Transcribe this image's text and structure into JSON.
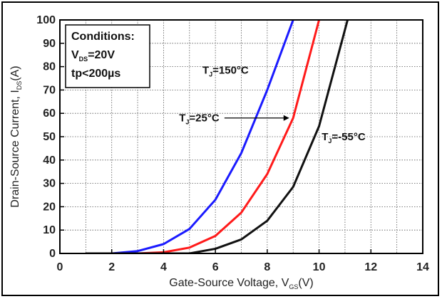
{
  "chart_data": {
    "type": "line",
    "xlabel": "Gate-Source Voltage, V",
    "xlabel_sub": "GS",
    "xlabel_unit": "(V)",
    "ylabel": "Drain-Source Current, I",
    "ylabel_sub": "DS",
    "ylabel_unit": "(A)",
    "xlim": [
      0,
      14
    ],
    "ylim": [
      0,
      100
    ],
    "xticks": [
      0,
      2,
      4,
      6,
      8,
      10,
      12,
      14
    ],
    "yticks": [
      0,
      10,
      20,
      30,
      40,
      50,
      60,
      70,
      80,
      90,
      100
    ],
    "grid": "dotted",
    "conditions": {
      "title": "Conditions:",
      "line1_main": "V",
      "line1_sub": "DS",
      "line1_rest": "=20V",
      "line2": "tp<200µs"
    },
    "series": [
      {
        "name_main": "T",
        "name_sub": "J",
        "name_rest": "=150°C",
        "color": "#1a1aff",
        "x": [
          1,
          2,
          3,
          4,
          5,
          6,
          7,
          8,
          9
        ],
        "y": [
          0,
          0,
          1,
          4,
          10.5,
          23,
          43,
          70,
          100
        ]
      },
      {
        "name_main": "T",
        "name_sub": "J",
        "name_rest": "=25°C",
        "color": "#ff1a1a",
        "x": [
          1,
          2,
          3,
          4,
          5,
          6,
          7,
          8,
          9,
          10
        ],
        "y": [
          0,
          0,
          0,
          0.5,
          2.5,
          7.5,
          17.5,
          34,
          58,
          100
        ]
      },
      {
        "name_main": "T",
        "name_sub": "J",
        "name_rest": "=-55°C",
        "color": "#111111",
        "x": [
          1,
          2,
          3,
          4,
          5,
          6,
          7,
          8,
          9,
          10,
          11.1
        ],
        "y": [
          0,
          0,
          0,
          0,
          0,
          2,
          6,
          14,
          28.5,
          54.5,
          100
        ]
      }
    ]
  }
}
